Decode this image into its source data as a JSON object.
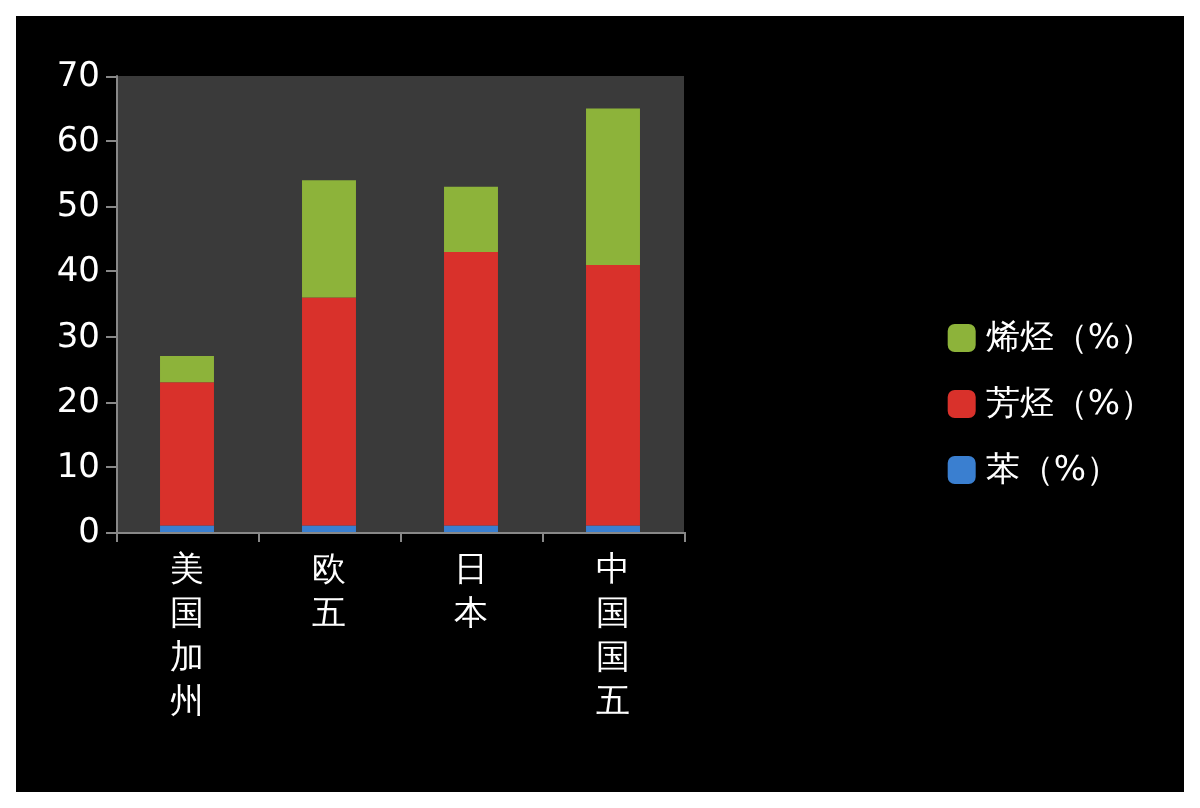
{
  "chart_data": {
    "type": "bar",
    "stacked": true,
    "categories": [
      "美国加州",
      "欧五",
      "日本",
      "中国国五"
    ],
    "series": [
      {
        "name": "苯（%）",
        "color": "#3a7fd0",
        "values": [
          1,
          1,
          1,
          1
        ]
      },
      {
        "name": "芳烃（%）",
        "color": "#d9312b",
        "values": [
          22,
          35,
          42,
          40
        ]
      },
      {
        "name": "烯烃（%）",
        "color": "#8db33a",
        "values": [
          4,
          18,
          10,
          24
        ]
      }
    ],
    "ylim": [
      0,
      70
    ],
    "yticks": [
      0,
      10,
      20,
      30,
      40,
      50,
      60,
      70
    ],
    "grid": false,
    "legend": "right"
  }
}
